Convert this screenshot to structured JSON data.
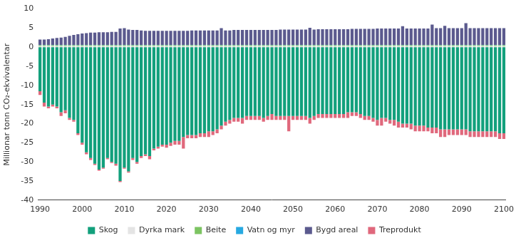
{
  "chart_data": {
    "type": "bar",
    "stacked": true,
    "y_label": "Millionar tonn CO₂-ekvivalentar",
    "ylim": [
      -40,
      10
    ],
    "yticks": [
      -40,
      -35,
      -30,
      -25,
      -20,
      -15,
      -10,
      -5,
      0,
      5,
      10
    ],
    "grid": false,
    "legend": "bottom",
    "categories": [
      "1990",
      null,
      null,
      null,
      null,
      null,
      null,
      null,
      null,
      null,
      "2000",
      null,
      null,
      null,
      null,
      null,
      null,
      null,
      null,
      null,
      "2010",
      null,
      null,
      null,
      null,
      null,
      null,
      null,
      null,
      null,
      "2020",
      null,
      null,
      null,
      null,
      null,
      null,
      null,
      null,
      null,
      "2030",
      null,
      null,
      null,
      null,
      null,
      null,
      null,
      null,
      null,
      "2040",
      null,
      null,
      null,
      null,
      null,
      null,
      null,
      null,
      null,
      "2050",
      null,
      null,
      null,
      null,
      null,
      null,
      null,
      null,
      null,
      "2060",
      null,
      null,
      null,
      null,
      null,
      null,
      null,
      null,
      null,
      "2070",
      null,
      null,
      null,
      null,
      null,
      null,
      null,
      null,
      null,
      "2080",
      null,
      null,
      null,
      null,
      null,
      null,
      null,
      null,
      null,
      "2090",
      null,
      null,
      null,
      null,
      null,
      null,
      null,
      null,
      null,
      "2100"
    ],
    "series": [
      {
        "name": "Skog",
        "color": "#12a07c",
        "values": [
          -11.5,
          -14.5,
          -15.5,
          -15,
          -15.5,
          -17,
          -16.5,
          -18.5,
          -19,
          -22.5,
          -25,
          -27.5,
          -29,
          -30.5,
          -32,
          -31.5,
          -29,
          -30,
          -30.5,
          -35,
          -31.5,
          -32.5,
          -29,
          -30,
          -28.5,
          -28,
          -28.5,
          -26.5,
          -26,
          -25.5,
          -25.5,
          -25,
          -24.5,
          -24.5,
          -23.5,
          -23,
          -23,
          -23,
          -22.5,
          -22.5,
          -22,
          -22,
          -21.5,
          -20.5,
          -19.5,
          -19,
          -18.5,
          -18.5,
          -18.5,
          -18,
          -18,
          -18,
          -18,
          -18.5,
          -18,
          -17.5,
          -18,
          -18,
          -18,
          -18,
          -18,
          -18,
          -18,
          -18,
          -18.5,
          -18,
          -17.5,
          -17.5,
          -17.5,
          -17.5,
          -17.5,
          -17.5,
          -17.5,
          -17,
          -17,
          -17,
          -17.5,
          -18,
          -18,
          -18.5,
          -19,
          -18.5,
          -18.5,
          -19,
          -19,
          -19.5,
          -20,
          -20,
          -20,
          -20.5,
          -20.5,
          -20.5,
          -21,
          -21,
          -21,
          -21.5,
          -21.5,
          -21.5,
          -21.5,
          -21.5,
          -21.5,
          -21.5,
          -22,
          -22,
          -22,
          -22,
          -22,
          -22,
          -22,
          -22.5,
          -22.5
        ]
      },
      {
        "name": "Dyrka mark",
        "color": "#e4e4e4",
        "values": [
          0.3,
          0.3,
          0.3,
          0.3,
          0.3,
          0.3,
          0.3,
          0.3,
          0.3,
          0.3,
          0.3,
          0.3,
          0.3,
          0.3,
          0.3,
          0.3,
          0.3,
          0.3,
          0.3,
          0.3,
          0.3,
          0.3,
          0.3,
          0.3,
          0.3,
          0.3,
          0.3,
          0.3,
          0.3,
          0.3,
          0.3,
          0.3,
          0.3,
          0.3,
          0.3,
          0.3,
          0.3,
          0.3,
          0.3,
          0.3,
          0.3,
          0.3,
          0.3,
          0.3,
          0.3,
          0.3,
          0.3,
          0.3,
          0.3,
          0.3,
          0.3,
          0.3,
          0.3,
          0.3,
          0.3,
          0.3,
          0.3,
          0.3,
          0.3,
          0.3,
          0.3,
          0.3,
          0.3,
          0.3,
          0.3,
          0.3,
          0.3,
          0.3,
          0.3,
          0.3,
          0.3,
          0.3,
          0.3,
          0.3,
          0.3,
          0.3,
          0.3,
          0.3,
          0.3,
          0.3,
          0.3,
          0.3,
          0.3,
          0.3,
          0.3,
          0.3,
          0.3,
          0.3,
          0.3,
          0.3,
          0.3,
          0.3,
          0.3,
          0.3,
          0.3,
          0.3,
          0.3,
          0.3,
          0.3,
          0.3,
          0.3,
          0.3,
          0.3,
          0.3,
          0.3,
          0.3,
          0.3,
          0.3,
          0.3,
          0.3,
          0.3
        ]
      },
      {
        "name": "Beite",
        "color": "#7cc462",
        "values": [
          0.2,
          0.2,
          0.2,
          0.2,
          0.2,
          0.2,
          0.2,
          0.2,
          0.2,
          0.2,
          0.2,
          0.2,
          0.2,
          0.2,
          0.2,
          0.2,
          0.2,
          0.2,
          0.2,
          0.2,
          0.2,
          0.2,
          0.2,
          0.2,
          0.2,
          0.2,
          0.2,
          0.2,
          0.2,
          0.2,
          0.2,
          0.2,
          0.2,
          0.2,
          0.2,
          0.2,
          0.2,
          0.2,
          0.2,
          0.2,
          0.2,
          0.2,
          0.2,
          0.2,
          0.2,
          0.2,
          0.2,
          0.2,
          0.2,
          0.2,
          0.2,
          0.2,
          0.2,
          0.2,
          0.2,
          0.2,
          0.2,
          0.2,
          0.2,
          0.2,
          0.2,
          0.2,
          0.2,
          0.2,
          0.2,
          0.2,
          0.2,
          0.2,
          0.2,
          0.2,
          0.2,
          0.2,
          0.2,
          0.2,
          0.2,
          0.2,
          0.2,
          0.2,
          0.2,
          0.2,
          0.2,
          0.2,
          0.2,
          0.2,
          0.2,
          0.2,
          0.2,
          0.2,
          0.2,
          0.2,
          0.2,
          0.2,
          0.2,
          0.2,
          0.2,
          0.2,
          0.2,
          0.2,
          0.2,
          0.2,
          0.2,
          0.2,
          0.2,
          0.2,
          0.2,
          0.2,
          0.2,
          0.2,
          0.2,
          0.2,
          0.2
        ]
      },
      {
        "name": "Vatn og myr",
        "color": "#27a9e1",
        "values": [
          0.1,
          0.1,
          0.1,
          0.1,
          0.1,
          0.1,
          0.1,
          0.1,
          0.1,
          0.1,
          0.1,
          0.1,
          0.1,
          0.1,
          0.1,
          0.1,
          0.1,
          0.1,
          0.1,
          0.1,
          0.1,
          0.1,
          0.1,
          0.1,
          0.1,
          0.1,
          0.1,
          0.1,
          0.1,
          0.1,
          0.1,
          0.1,
          0.1,
          0.1,
          0.1,
          0.1,
          0.1,
          0.1,
          0.1,
          0.1,
          0.1,
          0.1,
          0.1,
          0.1,
          0.1,
          0.1,
          0.1,
          0.1,
          0.1,
          0.1,
          0.1,
          0.1,
          0.1,
          0.1,
          0.1,
          0.1,
          0.1,
          0.1,
          0.1,
          0.1,
          0.1,
          0.1,
          0.1,
          0.1,
          0.1,
          0.1,
          0.1,
          0.1,
          0.1,
          0.1,
          0.1,
          0.1,
          0.1,
          0.1,
          0.1,
          0.1,
          0.1,
          0.1,
          0.1,
          0.1,
          0.1,
          0.1,
          0.1,
          0.1,
          0.1,
          0.1,
          0.1,
          0.1,
          0.1,
          0.1,
          0.1,
          0.1,
          0.1,
          0.1,
          0.1,
          0.1,
          0.1,
          0.1,
          0.1,
          0.1,
          0.1,
          0.1,
          0.1,
          0.1,
          0.1,
          0.1,
          0.1,
          0.1,
          0.1,
          0.1,
          0.1
        ]
      },
      {
        "name": "Bygd areal",
        "color": "#5b5a8e",
        "values": [
          1.4,
          1.4,
          1.5,
          1.7,
          1.8,
          1.9,
          2.1,
          2.4,
          2.6,
          2.8,
          3.0,
          3.1,
          3.2,
          3.2,
          3.3,
          3.3,
          3.3,
          3.4,
          3.4,
          4.3,
          4.4,
          4.0,
          3.9,
          3.9,
          3.8,
          3.7,
          3.7,
          3.7,
          3.7,
          3.7,
          3.7,
          3.7,
          3.7,
          3.7,
          3.7,
          3.7,
          3.8,
          3.8,
          3.8,
          3.8,
          3.8,
          3.8,
          3.8,
          4.4,
          3.8,
          3.8,
          3.9,
          3.9,
          3.9,
          3.9,
          3.9,
          3.9,
          3.9,
          3.9,
          3.9,
          3.9,
          3.9,
          4.0,
          4.0,
          4.0,
          4.0,
          4.0,
          4.0,
          4.0,
          4.5,
          4.0,
          4.1,
          4.1,
          4.1,
          4.1,
          4.1,
          4.1,
          4.1,
          4.1,
          4.2,
          4.2,
          4.2,
          4.2,
          4.2,
          4.2,
          4.3,
          4.3,
          4.3,
          4.3,
          4.3,
          4.3,
          4.9,
          4.3,
          4.3,
          4.3,
          4.3,
          4.3,
          4.3,
          5.3,
          4.4,
          4.4,
          5.0,
          4.4,
          4.4,
          4.4,
          4.4,
          5.7,
          4.4,
          4.4,
          4.4,
          4.4,
          4.4,
          4.4,
          4.4,
          4.4,
          4.4
        ]
      },
      {
        "name": "Treprodukt",
        "color": "#e0687c",
        "values": [
          -1,
          -1,
          -0.5,
          -0.5,
          -0.5,
          -1,
          -0.8,
          -0.5,
          -0.5,
          -0.5,
          -0.5,
          -0.5,
          -0.5,
          -0.3,
          -0.3,
          -0.3,
          -0.3,
          -0.3,
          -0.5,
          -0.3,
          -0.3,
          -0.3,
          -0.5,
          -0.5,
          -0.5,
          -0.5,
          -0.8,
          -0.5,
          -0.5,
          -0.5,
          -0.8,
          -0.8,
          -1,
          -1,
          -3,
          -0.8,
          -0.8,
          -0.8,
          -1,
          -1,
          -1.5,
          -1,
          -1,
          -1,
          -1,
          -1,
          -1,
          -1,
          -1.5,
          -1,
          -1,
          -1,
          -1,
          -1,
          -1,
          -1.5,
          -1,
          -1,
          -1,
          -4,
          -1,
          -1,
          -1,
          -1,
          -1.5,
          -1,
          -1,
          -1,
          -1,
          -1,
          -1,
          -1,
          -1,
          -1.5,
          -1,
          -1,
          -1,
          -1,
          -1,
          -1,
          -1.5,
          -2,
          -1,
          -1,
          -1.5,
          -1.5,
          -1,
          -1,
          -1.5,
          -1.5,
          -1.5,
          -1.5,
          -1,
          -1.5,
          -1.5,
          -2,
          -2,
          -1.5,
          -1.5,
          -1.5,
          -1.5,
          -1.5,
          -1.5,
          -1.5,
          -1.5,
          -1.5,
          -1.5,
          -1.5,
          -1.5,
          -1.5,
          -1.5
        ]
      }
    ]
  }
}
